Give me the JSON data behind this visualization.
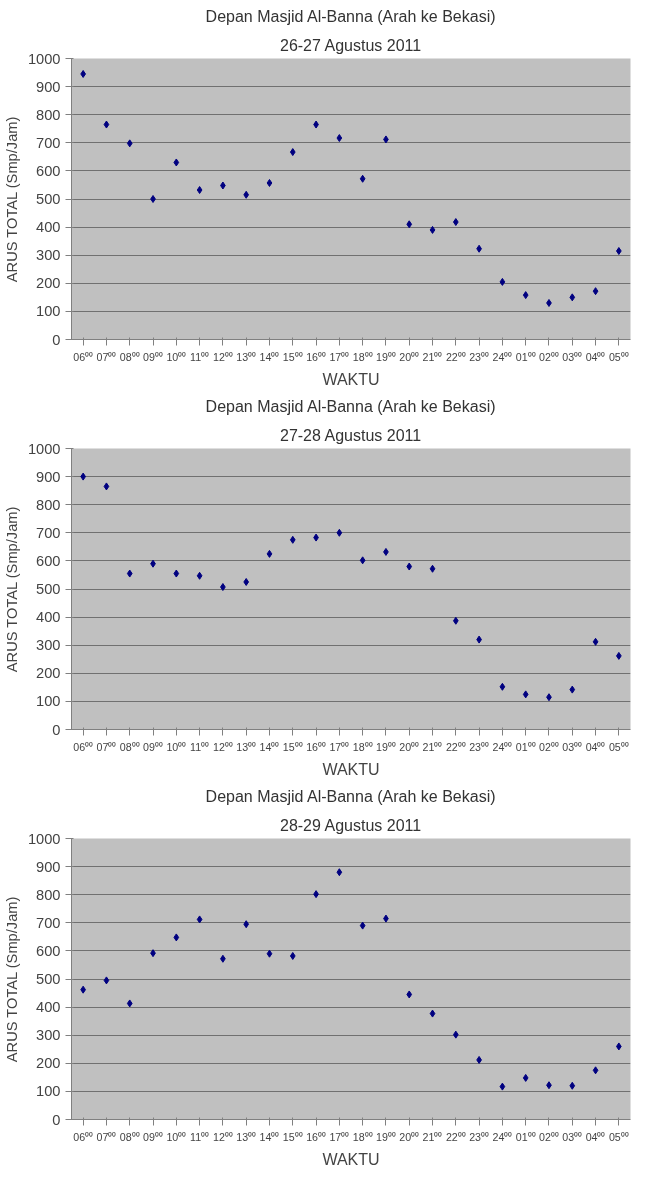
{
  "chart_data": [
    {
      "type": "scatter",
      "title": "Depan Masjid Al-Banna (Arah ke Bekasi)",
      "subtitle": "26-27 Agustus 2011",
      "xlabel": "WAKTU",
      "ylabel": "ARUS TOTAL (Smp/Jam)",
      "categories": [
        "06⁰⁰",
        "07⁰⁰",
        "08⁰⁰",
        "09⁰⁰",
        "10⁰⁰",
        "11⁰⁰",
        "12⁰⁰",
        "13⁰⁰",
        "14⁰⁰",
        "15⁰⁰",
        "16⁰⁰",
        "17⁰⁰",
        "18⁰⁰",
        "19⁰⁰",
        "20⁰⁰",
        "21⁰⁰",
        "22⁰⁰",
        "23⁰⁰",
        "24⁰⁰",
        "01⁰⁰",
        "02⁰⁰",
        "03⁰⁰",
        "04⁰⁰",
        "05⁰⁰"
      ],
      "series": [
        {
          "color": "#000080",
          "values": [
            945,
            765,
            698,
            500,
            630,
            532,
            548,
            515,
            557,
            667,
            765,
            717,
            572,
            712,
            410,
            390,
            418,
            323,
            205,
            158,
            130,
            150,
            172,
            315
          ]
        }
      ],
      "ylim": [
        0,
        1000
      ],
      "yticks": [
        0,
        100,
        200,
        300,
        400,
        500,
        600,
        700,
        800,
        900,
        1000
      ],
      "grid": "y",
      "marker": "diamond"
    },
    {
      "type": "scatter",
      "title": "Depan Masjid Al-Banna (Arah ke Bekasi)",
      "subtitle": "27-28 Agustus 2011",
      "xlabel": "WAKTU",
      "ylabel": "ARUS TOTAL (Smp/Jam)",
      "categories": [
        "06⁰⁰",
        "07⁰⁰",
        "08⁰⁰",
        "09⁰⁰",
        "10⁰⁰",
        "11⁰⁰",
        "12⁰⁰",
        "13⁰⁰",
        "14⁰⁰",
        "15⁰⁰",
        "16⁰⁰",
        "17⁰⁰",
        "18⁰⁰",
        "19⁰⁰",
        "20⁰⁰",
        "21⁰⁰",
        "22⁰⁰",
        "23⁰⁰",
        "24⁰⁰",
        "01⁰⁰",
        "02⁰⁰",
        "03⁰⁰",
        "04⁰⁰",
        "05⁰⁰"
      ],
      "series": [
        {
          "color": "#000080",
          "values": [
            900,
            865,
            555,
            590,
            555,
            547,
            507,
            525,
            625,
            675,
            683,
            700,
            602,
            632,
            580,
            572,
            387,
            320,
            152,
            125,
            115,
            142,
            312,
            262
          ]
        }
      ],
      "ylim": [
        0,
        1000
      ],
      "yticks": [
        0,
        100,
        200,
        300,
        400,
        500,
        600,
        700,
        800,
        900,
        1000
      ],
      "grid": "y",
      "marker": "diamond"
    },
    {
      "type": "scatter",
      "title": "Depan Masjid Al-Banna (Arah ke Bekasi)",
      "subtitle": "28-29 Agustus 2011",
      "xlabel": "WAKTU",
      "ylabel": "ARUS TOTAL (Smp/Jam)",
      "categories": [
        "06⁰⁰",
        "07⁰⁰",
        "08⁰⁰",
        "09⁰⁰",
        "10⁰⁰",
        "11⁰⁰",
        "12⁰⁰",
        "13⁰⁰",
        "14⁰⁰",
        "15⁰⁰",
        "16⁰⁰",
        "17⁰⁰",
        "18⁰⁰",
        "19⁰⁰",
        "20⁰⁰",
        "21⁰⁰",
        "22⁰⁰",
        "23⁰⁰",
        "24⁰⁰",
        "01⁰⁰",
        "02⁰⁰",
        "03⁰⁰",
        "04⁰⁰",
        "05⁰⁰"
      ],
      "series": [
        {
          "color": "#000080",
          "values": [
            462,
            495,
            413,
            592,
            648,
            712,
            572,
            695,
            590,
            582,
            802,
            880,
            690,
            715,
            445,
            377,
            302,
            212,
            117,
            148,
            122,
            120,
            175,
            260
          ]
        }
      ],
      "ylim": [
        0,
        1000
      ],
      "yticks": [
        0,
        100,
        200,
        300,
        400,
        500,
        600,
        700,
        800,
        900,
        1000
      ],
      "grid": "y",
      "marker": "diamond"
    }
  ]
}
